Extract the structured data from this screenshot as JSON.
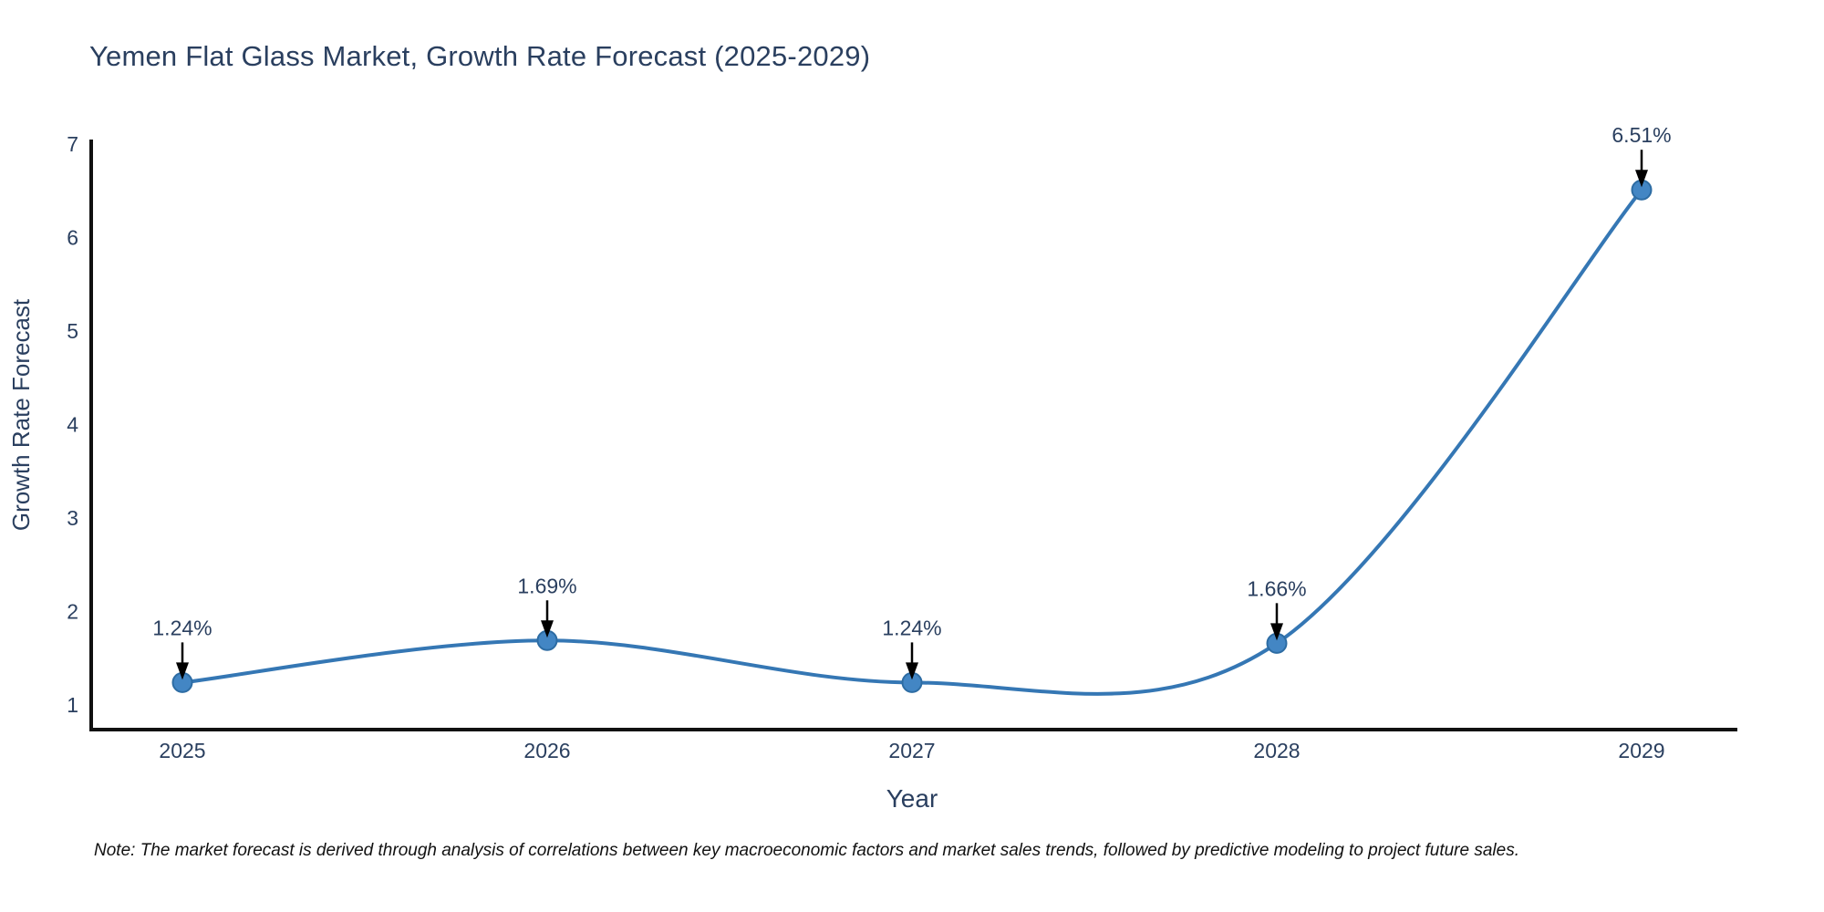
{
  "page": {
    "note": "Note: The market forecast is derived through analysis of correlations between key macroeconomic factors and market sales trends, followed by predictive modeling to project future sales."
  },
  "chart_data": {
    "type": "line",
    "title": "Yemen Flat Glass Market, Growth Rate Forecast (2025-2029)",
    "xlabel": "Year",
    "ylabel": "Growth Rate Forecast",
    "categories": [
      "2025",
      "2026",
      "2027",
      "2028",
      "2029"
    ],
    "series": [
      {
        "name": "Growth Rate Forecast",
        "values": [
          1.24,
          1.69,
          1.24,
          1.66,
          6.51
        ]
      }
    ],
    "point_labels": [
      "1.24%",
      "1.69%",
      "1.24%",
      "1.66%",
      "6.51%"
    ],
    "yticks": [
      1,
      2,
      3,
      4,
      5,
      6,
      7
    ],
    "ylim": [
      0.74,
      7
    ],
    "grid": false,
    "legend": "none",
    "line_shape": "spline",
    "colors": {
      "line": "#3577b4",
      "marker_fill": "#4386c4",
      "marker_edge": "#2d6ca3",
      "axis": "#111111",
      "tick_text": "#2a3f5f",
      "annotation_text": "#2a3f5f",
      "annotation_arrow": "#000000",
      "title_text": "#2a3f5f",
      "background": "#ffffff"
    }
  }
}
